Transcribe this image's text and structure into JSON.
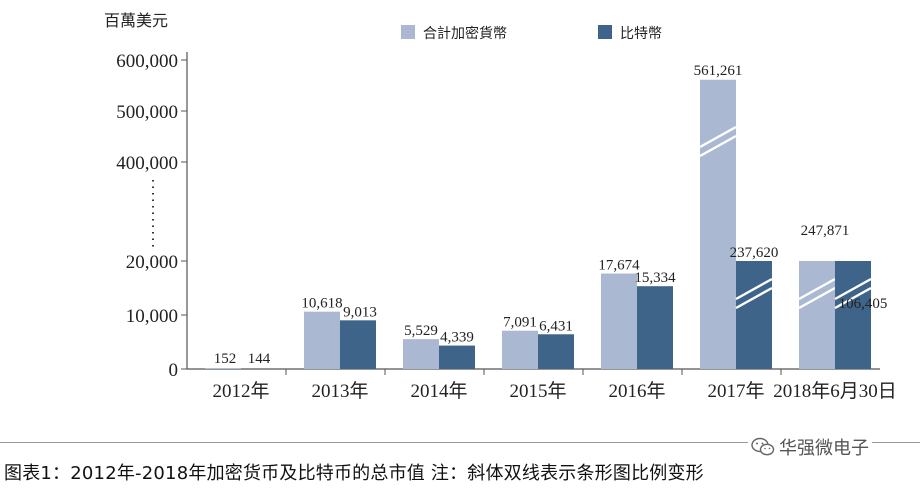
{
  "chart_data": {
    "type": "bar",
    "unit_label": "百萬美元",
    "categories": [
      "2012年",
      "2013年",
      "2014年",
      "2015年",
      "2016年",
      "2017年",
      "2018年6月30日"
    ],
    "series": [
      {
        "name": "合計加密貨幣",
        "color": "#aab9d1",
        "values": [
          152,
          10618,
          5529,
          7091,
          17674,
          561261,
          247871
        ],
        "labels": [
          "152",
          "10,618",
          "5,529",
          "7,091",
          "17,674",
          "561,261",
          "247,871"
        ]
      },
      {
        "name": "比特幣",
        "color": "#3f6489",
        "values": [
          144,
          9013,
          4339,
          6431,
          15334,
          237620,
          106405
        ],
        "labels": [
          "144",
          "9,013",
          "4,339",
          "6,431",
          "15,334",
          "237,620",
          "106,405"
        ]
      }
    ],
    "y_axis": {
      "lower_ticks": [
        {
          "value": 0,
          "label": "0"
        },
        {
          "value": 10000,
          "label": "10,000"
        },
        {
          "value": 20000,
          "label": "20,000"
        }
      ],
      "upper_ticks": [
        {
          "value": 400000,
          "label": "400,000"
        },
        {
          "value": 500000,
          "label": "500,000"
        },
        {
          "value": 600000,
          "label": "600,000"
        }
      ],
      "scale": "broken"
    },
    "broken_bars": [
      "合計加密貨幣:2017年",
      "比特幣:2017年",
      "合計加密貨幣:2018年6月30日",
      "比特幣:2018年6月30日"
    ],
    "legend_position": "top-center",
    "caption": "图表1：2012年-2018年加密货币及比特币的总市值 注：斜体双线表示条形图比例变形"
  },
  "watermark": "华强微电子"
}
